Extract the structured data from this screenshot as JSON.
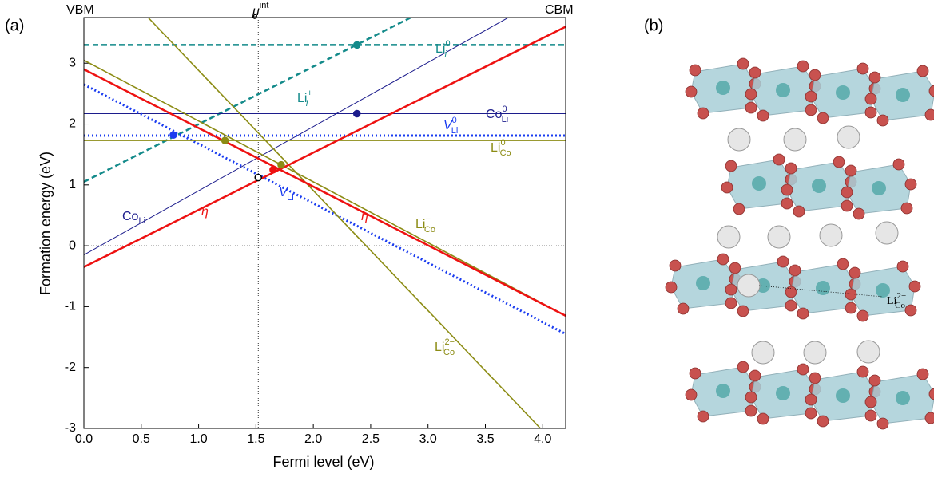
{
  "chart_data": {
    "type": "line",
    "panel_label": "(a)",
    "panel_b_label": "(b)",
    "x_label": "Fermi level (eV)",
    "y_label": "Formation energy (eV)",
    "top_left": "VBM",
    "top_right": "CBM",
    "mu": {
      "main": "μ",
      "sub": "e",
      "sup": "int"
    },
    "xlim": [
      0,
      4.2
    ],
    "ylim": [
      -3,
      3.75
    ],
    "xticks": [
      {
        "value": 0,
        "label": "0.0"
      },
      {
        "value": 0.5,
        "label": "0.5"
      },
      {
        "value": 1,
        "label": "1.0"
      },
      {
        "value": 1.5,
        "label": "1.5"
      },
      {
        "value": 2,
        "label": "2.0"
      },
      {
        "value": 2.5,
        "label": "2.5"
      },
      {
        "value": 3,
        "label": "3.0"
      },
      {
        "value": 3.5,
        "label": "3.5"
      },
      {
        "value": 4,
        "label": "4.0"
      }
    ],
    "yticks": [
      -3,
      -2,
      -1,
      0,
      1,
      2,
      3
    ],
    "mu_x": 1.52,
    "series": [
      {
        "color": "#138a8a",
        "style": "dashed",
        "width": 2.5,
        "x": [
          0,
          4.2
        ],
        "values": [
          3.3,
          3.3
        ]
      },
      {
        "color": "#138a8a",
        "style": "dashed",
        "width": 2.5,
        "x": [
          0,
          2.85
        ],
        "values": [
          1.05,
          3.75
        ]
      },
      {
        "color": "#1c1c8c",
        "style": "solid",
        "width": 1,
        "x": [
          0,
          4.2
        ],
        "values": [
          2.17,
          2.17
        ]
      },
      {
        "color": "#1c1c8c",
        "style": "solid",
        "width": 1,
        "x": [
          0,
          3.7
        ],
        "values": [
          -0.15,
          3.75
        ]
      },
      {
        "color": "#1a3cf0",
        "style": "dotted",
        "width": 3,
        "x": [
          0,
          4.2
        ],
        "values": [
          1.81,
          1.81
        ]
      },
      {
        "color": "#1a3cf0",
        "style": "dotted",
        "width": 3,
        "x": [
          0,
          4.2
        ],
        "values": [
          2.65,
          -1.45
        ]
      },
      {
        "color": "#8c8c14",
        "style": "solid",
        "width": 1.6,
        "x": [
          0,
          4.2
        ],
        "values": [
          1.73,
          1.73
        ]
      },
      {
        "color": "#8c8c14",
        "style": "solid",
        "width": 1.6,
        "x": [
          0,
          4.1
        ],
        "values": [
          3.05,
          -1.05
        ]
      },
      {
        "color": "#8c8c14",
        "style": "solid",
        "width": 1.6,
        "x": [
          0.56,
          3.98
        ],
        "values": [
          3.75,
          -3
        ]
      },
      {
        "color": "#ee1111",
        "style": "solid",
        "width": 2.5,
        "x": [
          0,
          4.2
        ],
        "values": [
          -0.35,
          3.6
        ]
      },
      {
        "color": "#ee1111",
        "style": "solid",
        "width": 2.5,
        "x": [
          0,
          4.2
        ],
        "values": [
          2.9,
          -1.15
        ]
      }
    ],
    "points": {
      "x": [
        0.78,
        1.23,
        2.38,
        2.38,
        1.65,
        1.72,
        1.52
      ],
      "values": [
        1.82,
        1.73,
        2.17,
        3.3,
        1.25,
        1.33,
        1.12
      ],
      "colors": [
        "#1a3cf0",
        "#8c8c14",
        "#1c1c8c",
        "#138a8a",
        "#ee1111",
        "#8c8c14",
        "#ffffff"
      ]
    },
    "labels": [
      {
        "main": "Li",
        "sub": "i",
        "sup": "0"
      },
      {
        "main": "Li",
        "sub": "i",
        "sup": "+"
      },
      {
        "main": "Co",
        "sub": "Li",
        "sup": "0"
      },
      {
        "main": "V",
        "sub": "Li",
        "sup": "0"
      },
      {
        "main": "Li",
        "sub": "Co",
        "sup": "0"
      },
      {
        "main": "Li",
        "sub": "Co",
        "sup": "−"
      },
      {
        "main": "Li",
        "sub": "Co",
        "sup": "2−"
      },
      {
        "main": "Co",
        "sub": "Li"
      },
      {
        "main": "η"
      },
      {
        "main": "η"
      },
      {
        "main": "V",
        "sub": "Li",
        "sup": "−"
      }
    ],
    "structure_label": {
      "main": "Li",
      "sub": "Co",
      "sup": "2−"
    }
  }
}
